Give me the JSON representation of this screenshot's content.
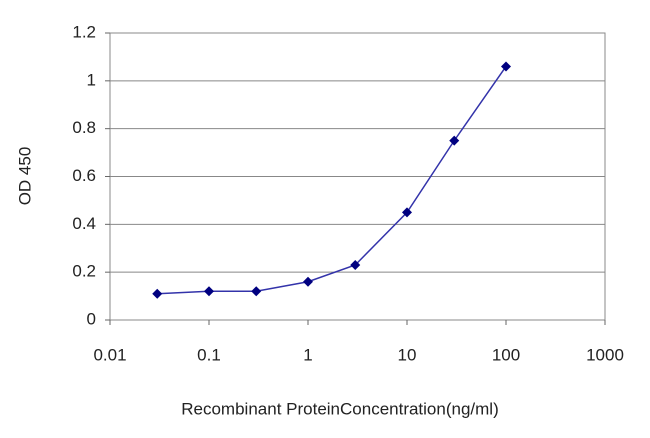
{
  "chart_data": {
    "type": "line",
    "xscale": "log",
    "x": [
      0.03,
      0.1,
      0.3,
      1,
      3,
      10,
      30,
      100
    ],
    "values": [
      0.11,
      0.12,
      0.12,
      0.16,
      0.23,
      0.45,
      0.75,
      1.06
    ],
    "color": "#3333aa",
    "marker_color": "#000080",
    "xlim": [
      0.01,
      1000
    ],
    "xticks": [
      0.01,
      0.1,
      1,
      10,
      100,
      1000
    ],
    "ylim": [
      0,
      1.2
    ],
    "yticks": [
      0,
      0.2,
      0.4,
      0.6,
      0.8,
      1,
      1.2
    ],
    "grid": true,
    "xlabel": "Recombinant ProteinConcentration(ng/ml)",
    "ylabel": "OD 450"
  }
}
